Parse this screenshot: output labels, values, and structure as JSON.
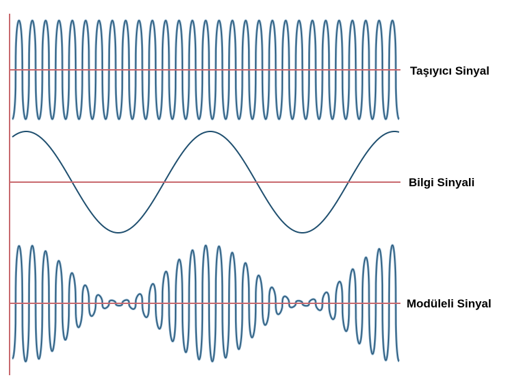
{
  "labels": {
    "carrier": "Taşıyıcı Sinyal",
    "information": "Bilgi Sinyali",
    "modulated": "Modüleli Sinyal"
  },
  "signals": {
    "carrier_cycles": 29,
    "information_cycles": 2.1,
    "modulation_type": "amplitude"
  },
  "colors": {
    "baseline": "#c8696e",
    "axis": "#c8696e",
    "wave_stroke": "#1f4f6f",
    "wave_fill": "#7fa6c4"
  }
}
